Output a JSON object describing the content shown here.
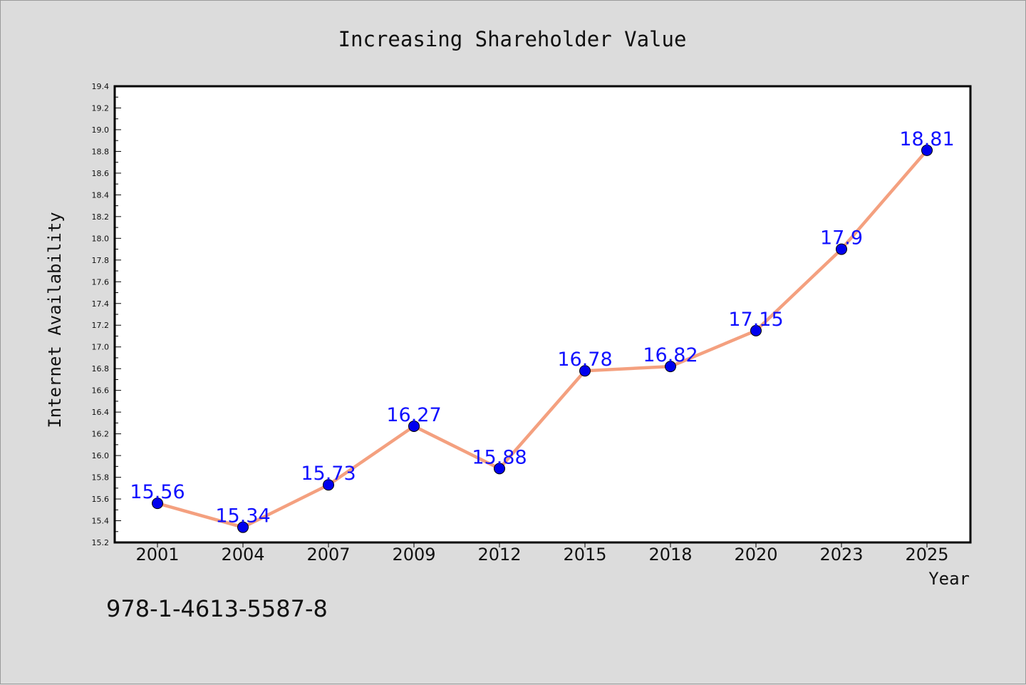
{
  "chart_data": {
    "type": "line",
    "title": "Increasing Shareholder Value",
    "xlabel": "Year",
    "ylabel": "Internet Availability",
    "categories": [
      "2001",
      "2004",
      "2007",
      "2009",
      "2012",
      "2015",
      "2018",
      "2020",
      "2023",
      "2025"
    ],
    "values": [
      15.56,
      15.34,
      15.73,
      16.27,
      15.88,
      16.78,
      16.82,
      17.15,
      17.9,
      18.81
    ],
    "data_labels": [
      "15.56",
      "15.34",
      "15.73",
      "16.27",
      "15.88",
      "16.78",
      "16.82",
      "17.15",
      "17.9",
      "18.81"
    ],
    "ylim": [
      15.2,
      19.4
    ],
    "yticks": [
      "15.2",
      "15.4",
      "15.6",
      "15.8",
      "16.0",
      "16.2",
      "16.4",
      "16.6",
      "16.8",
      "17.0",
      "17.2",
      "17.4",
      "17.6",
      "17.8",
      "18.0",
      "18.2",
      "18.4",
      "18.6",
      "18.8",
      "19.0",
      "19.2",
      "19.4"
    ],
    "grid": false,
    "legend": "none",
    "line_color": "#f4a07f",
    "marker_color": "#0000ee"
  },
  "annotation": "978-1-4613-5587-8"
}
